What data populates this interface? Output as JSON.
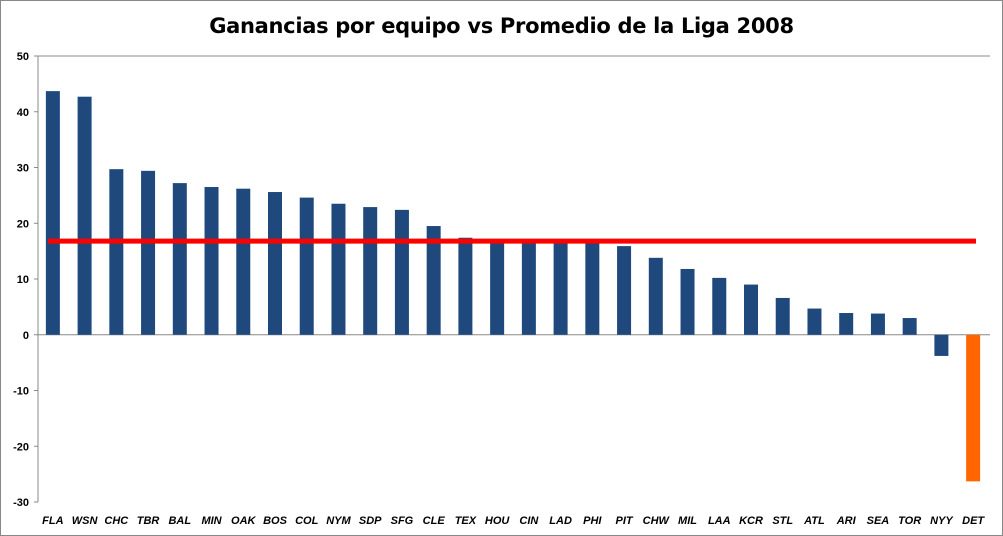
{
  "chart_data": {
    "type": "bar",
    "title": "Ganancias por equipo vs Promedio de la Liga 2008",
    "xlabel": "",
    "ylabel": "",
    "ylim": [
      -30,
      50
    ],
    "yticks": [
      50,
      40,
      30,
      20,
      10,
      0,
      -10,
      -20,
      -30
    ],
    "grid": "horizontal-top-only",
    "categories": [
      "FLA",
      "WSN",
      "CHC",
      "TBR",
      "BAL",
      "MIN",
      "OAK",
      "BOS",
      "COL",
      "NYM",
      "SDP",
      "SFG",
      "CLE",
      "TEX",
      "HOU",
      "CIN",
      "LAD",
      "PHI",
      "PIT",
      "CHW",
      "MIL",
      "LAA",
      "KCR",
      "STL",
      "ATL",
      "ARI",
      "SEA",
      "TOR",
      "NYY",
      "DET"
    ],
    "values": [
      43.7,
      42.7,
      29.7,
      29.4,
      27.2,
      26.5,
      26.2,
      25.6,
      24.6,
      23.5,
      22.9,
      22.4,
      19.5,
      17.4,
      16.7,
      16.7,
      16.7,
      16.7,
      15.9,
      13.8,
      11.8,
      10.2,
      9.0,
      6.6,
      4.7,
      3.9,
      3.8,
      3.0,
      -3.8,
      -26.3
    ],
    "highlight": {
      "category": "DET",
      "color": "#ff6600"
    },
    "bar_color": "#1f497d",
    "average_line": {
      "value": 16.8,
      "color": "#ff0000"
    }
  }
}
